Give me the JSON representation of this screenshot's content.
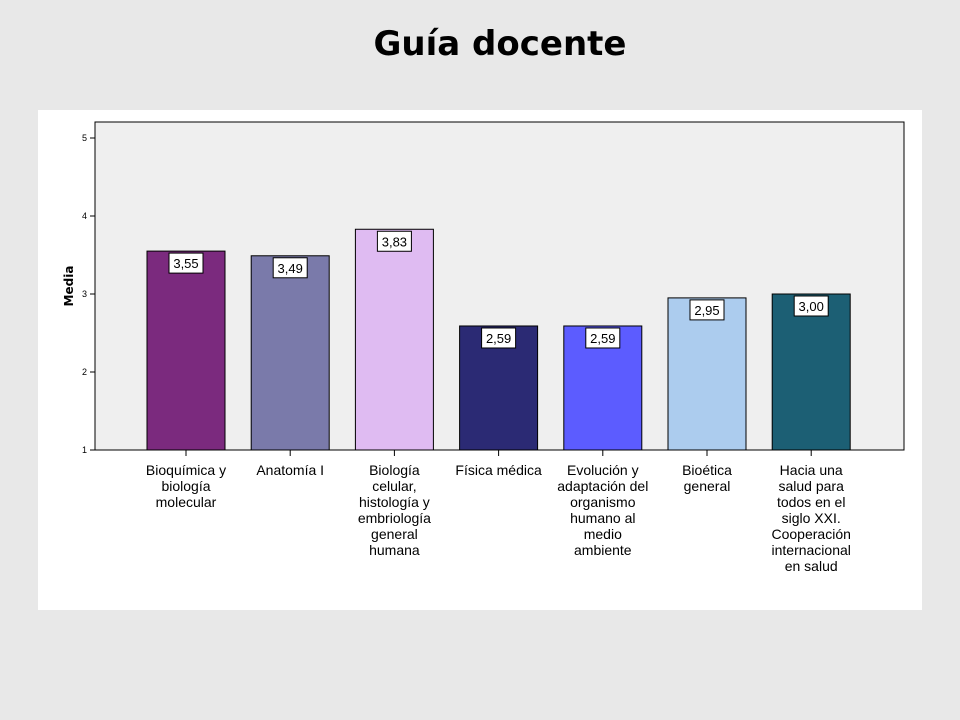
{
  "page": {
    "title": "Guía docente"
  },
  "chart_data": {
    "type": "bar",
    "title": "",
    "xlabel": "",
    "ylabel": "Media",
    "ylim": [
      1,
      5
    ],
    "yticks": [
      "1",
      "2",
      "3",
      "4",
      "5"
    ],
    "grid": false,
    "categories": [
      "Bioquímica y biología molecular",
      "Anatomía I",
      "Biología celular, histología y embriología general humana",
      "Física médica",
      "Evolución y adaptación del organismo humano al medio ambiente",
      "Bioética general",
      "Hacia una salud para todos en el siglo XXI. Cooperación internacional en salud"
    ],
    "category_lines": [
      [
        "Bioquímica y",
        "biología",
        "molecular"
      ],
      [
        "Anatomía I"
      ],
      [
        "Biología",
        "celular,",
        "histología y",
        "embriología",
        "general",
        "humana"
      ],
      [
        "Física médica"
      ],
      [
        "Evolución y",
        "adaptación del",
        "organismo",
        "humano al",
        "medio",
        "ambiente"
      ],
      [
        "Bioética",
        "general"
      ],
      [
        "Hacia una",
        "salud para",
        "todos en el",
        "siglo XXI.",
        "Cooperación",
        "internacional",
        "en salud"
      ]
    ],
    "values": [
      3.55,
      3.49,
      3.83,
      2.59,
      2.59,
      2.95,
      3.0
    ],
    "value_labels": [
      "3,55",
      "3,49",
      "3,83",
      "2,59",
      "2,59",
      "2,95",
      "3,00"
    ],
    "colors": [
      "#7b2a7e",
      "#7a7aaa",
      "#dfbbf2",
      "#2b2a74",
      "#5c5cff",
      "#acccee",
      "#1c5f74"
    ],
    "plot_background": "#efefef"
  }
}
